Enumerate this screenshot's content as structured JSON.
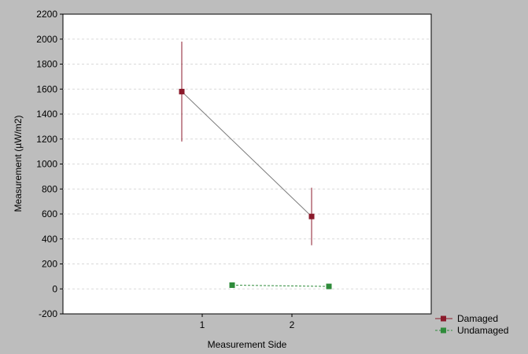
{
  "chart_data": {
    "type": "line",
    "title": "",
    "xlabel": "Measurement Side",
    "ylabel": "Measurement (µW/m2)",
    "categories": [
      "1",
      "2"
    ],
    "ylim": [
      -200,
      2200
    ],
    "yticks": [
      "-200",
      "0",
      "200",
      "400",
      "600",
      "800",
      "1000",
      "1200",
      "1400",
      "1600",
      "1800",
      "2000",
      "2200"
    ],
    "grid": "horizontal dashed",
    "legend_position": "bottom-right",
    "series": [
      {
        "name": "Damaged",
        "color": "#8b1a2b",
        "line_style": "solid",
        "points": [
          {
            "x": "1",
            "y": 1580,
            "err_low": 1180,
            "err_high": 1980
          },
          {
            "x": "2",
            "y": 580,
            "err_low": 350,
            "err_high": 810
          }
        ]
      },
      {
        "name": "Undamaged",
        "color": "#2e8b3a",
        "line_style": "dashed",
        "points": [
          {
            "x": "1",
            "y": 30,
            "err_low": 20,
            "err_high": 40
          },
          {
            "x": "2",
            "y": 20,
            "err_low": 10,
            "err_high": 30
          }
        ]
      }
    ]
  }
}
